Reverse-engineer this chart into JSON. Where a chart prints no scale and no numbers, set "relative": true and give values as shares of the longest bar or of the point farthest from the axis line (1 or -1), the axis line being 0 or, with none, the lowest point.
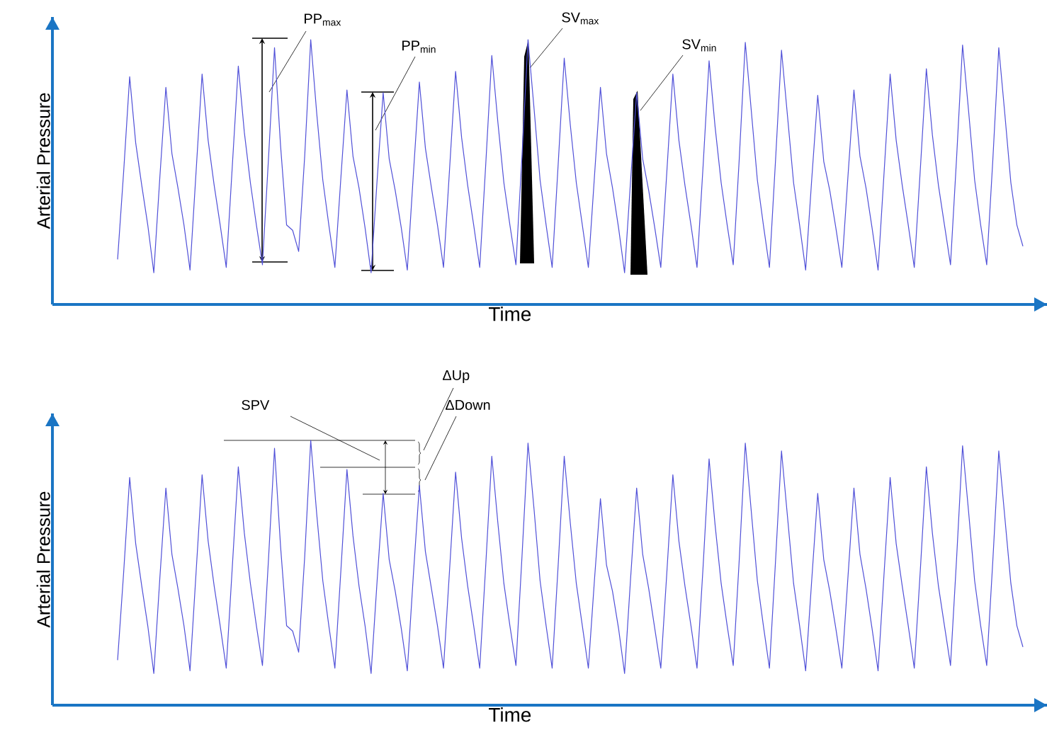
{
  "chart_data": [
    {
      "type": "line",
      "relative": true,
      "xlabel": "Time",
      "ylabel": "Arterial Pressure",
      "color": "#5050d8",
      "categories": [
        null,
        null,
        null,
        null,
        null,
        null,
        null,
        null,
        null,
        null,
        null,
        null,
        null,
        null,
        null,
        null,
        null,
        null,
        null,
        null,
        null,
        null,
        null,
        null,
        null,
        null,
        null,
        null,
        null,
        null,
        null,
        null,
        null,
        null,
        null,
        null,
        null,
        null,
        null,
        null,
        null,
        null,
        null,
        null,
        null,
        null,
        null,
        null,
        null,
        null,
        null,
        null,
        null,
        null,
        null,
        null,
        null,
        null,
        null,
        null,
        null,
        null,
        null,
        null,
        null,
        null,
        null,
        null,
        null,
        null,
        null,
        null,
        null,
        null,
        null,
        null,
        null,
        null,
        null,
        null,
        null,
        null,
        null,
        null,
        null,
        null,
        null,
        null,
        null,
        null,
        null,
        null,
        null,
        null,
        null,
        null,
        null,
        null,
        null,
        null,
        null,
        null,
        null,
        null,
        null,
        null,
        null,
        null,
        null,
        null,
        null,
        null,
        null,
        null,
        null,
        null,
        null,
        null,
        null,
        null,
        null,
        null,
        null,
        null,
        null,
        null,
        null,
        null,
        null,
        null,
        null,
        null,
        null,
        null,
        null,
        null,
        null,
        null,
        null,
        null,
        null,
        null,
        null,
        null,
        null,
        null,
        null,
        null,
        null,
        null,
        null
      ],
      "values": [
        0.17,
        0.5,
        0.86,
        0.61,
        0.45,
        0.3,
        0.12,
        0.48,
        0.82,
        0.57,
        0.44,
        0.3,
        0.13,
        0.5,
        0.87,
        0.62,
        0.45,
        0.3,
        0.14,
        0.52,
        0.9,
        0.65,
        0.46,
        0.3,
        0.15,
        0.55,
        0.97,
        0.6,
        0.3,
        0.28,
        0.2,
        0.56,
        1.0,
        0.72,
        0.47,
        0.3,
        0.14,
        0.48,
        0.81,
        0.56,
        0.44,
        0.29,
        0.12,
        0.47,
        0.8,
        0.55,
        0.43,
        0.29,
        0.13,
        0.49,
        0.84,
        0.59,
        0.44,
        0.3,
        0.14,
        0.51,
        0.88,
        0.63,
        0.45,
        0.3,
        0.14,
        0.53,
        0.94,
        0.69,
        0.46,
        0.3,
        0.15,
        0.56,
        1.0,
        0.74,
        0.47,
        0.3,
        0.14,
        0.53,
        0.93,
        0.68,
        0.46,
        0.3,
        0.14,
        0.48,
        0.82,
        0.57,
        0.44,
        0.29,
        0.12,
        0.47,
        0.8,
        0.55,
        0.43,
        0.29,
        0.14,
        0.5,
        0.87,
        0.62,
        0.45,
        0.3,
        0.14,
        0.52,
        0.92,
        0.67,
        0.46,
        0.3,
        0.15,
        0.55,
        0.99,
        0.73,
        0.47,
        0.3,
        0.14,
        0.54,
        0.96,
        0.71,
        0.46,
        0.3,
        0.13,
        0.47,
        0.79,
        0.54,
        0.43,
        0.29,
        0.14,
        0.48,
        0.81,
        0.56,
        0.44,
        0.29,
        0.13,
        0.5,
        0.87,
        0.62,
        0.45,
        0.3,
        0.14,
        0.51,
        0.89,
        0.64,
        0.45,
        0.3,
        0.15,
        0.55,
        0.98,
        0.73,
        0.47,
        0.3,
        0.15,
        0.54,
        0.97,
        0.72,
        0.46,
        0.3,
        0.22
      ],
      "annotations": [
        "PP$_{max}$",
        "PP$_{min}$",
        "SV$_{max}$",
        "SV$_{min}$"
      ]
    },
    {
      "type": "line",
      "relative": true,
      "xlabel": "Time",
      "ylabel": "Arterial Pressure",
      "color": "#5050d8",
      "categories": [
        null,
        null,
        null,
        null,
        null,
        null,
        null,
        null,
        null,
        null,
        null,
        null,
        null,
        null,
        null,
        null,
        null,
        null,
        null,
        null,
        null,
        null,
        null,
        null,
        null,
        null,
        null,
        null,
        null,
        null,
        null,
        null,
        null,
        null,
        null,
        null,
        null,
        null,
        null,
        null,
        null,
        null,
        null,
        null,
        null,
        null,
        null,
        null,
        null,
        null,
        null,
        null,
        null,
        null,
        null,
        null,
        null,
        null,
        null,
        null,
        null,
        null,
        null,
        null,
        null,
        null,
        null,
        null,
        null,
        null,
        null,
        null,
        null,
        null,
        null,
        null,
        null,
        null,
        null,
        null,
        null,
        null,
        null,
        null,
        null,
        null,
        null,
        null,
        null,
        null,
        null,
        null,
        null,
        null,
        null,
        null,
        null,
        null,
        null,
        null,
        null,
        null,
        null,
        null,
        null,
        null,
        null,
        null,
        null,
        null,
        null,
        null,
        null,
        null,
        null,
        null,
        null,
        null,
        null,
        null,
        null,
        null,
        null,
        null,
        null,
        null,
        null,
        null,
        null,
        null,
        null,
        null,
        null,
        null,
        null,
        null,
        null,
        null,
        null,
        null,
        null,
        null,
        null,
        null,
        null,
        null,
        null,
        null,
        null,
        null,
        null
      ],
      "values": [
        0.17,
        0.5,
        0.86,
        0.61,
        0.45,
        0.3,
        0.12,
        0.48,
        0.82,
        0.57,
        0.44,
        0.3,
        0.13,
        0.5,
        0.87,
        0.62,
        0.45,
        0.3,
        0.14,
        0.52,
        0.9,
        0.65,
        0.46,
        0.3,
        0.15,
        0.55,
        0.97,
        0.6,
        0.3,
        0.28,
        0.2,
        0.56,
        1.0,
        0.72,
        0.47,
        0.3,
        0.14,
        0.51,
        0.89,
        0.64,
        0.45,
        0.3,
        0.12,
        0.47,
        0.8,
        0.55,
        0.43,
        0.29,
        0.13,
        0.49,
        0.83,
        0.58,
        0.44,
        0.3,
        0.14,
        0.51,
        0.88,
        0.63,
        0.45,
        0.3,
        0.14,
        0.53,
        0.94,
        0.69,
        0.46,
        0.3,
        0.15,
        0.56,
        0.99,
        0.74,
        0.47,
        0.3,
        0.14,
        0.53,
        0.94,
        0.69,
        0.46,
        0.3,
        0.14,
        0.47,
        0.78,
        0.53,
        0.43,
        0.29,
        0.12,
        0.48,
        0.82,
        0.57,
        0.44,
        0.29,
        0.14,
        0.5,
        0.87,
        0.62,
        0.45,
        0.3,
        0.14,
        0.52,
        0.93,
        0.68,
        0.46,
        0.3,
        0.15,
        0.55,
        0.99,
        0.73,
        0.47,
        0.3,
        0.14,
        0.54,
        0.96,
        0.71,
        0.46,
        0.3,
        0.13,
        0.47,
        0.8,
        0.55,
        0.43,
        0.29,
        0.14,
        0.48,
        0.82,
        0.57,
        0.44,
        0.29,
        0.13,
        0.5,
        0.86,
        0.61,
        0.45,
        0.3,
        0.14,
        0.51,
        0.9,
        0.65,
        0.45,
        0.3,
        0.15,
        0.55,
        0.98,
        0.73,
        0.47,
        0.3,
        0.15,
        0.54,
        0.96,
        0.71,
        0.46,
        0.3,
        0.22
      ],
      "annotations": [
        "SPV",
        "ΔUp",
        "ΔDown"
      ]
    }
  ]
}
